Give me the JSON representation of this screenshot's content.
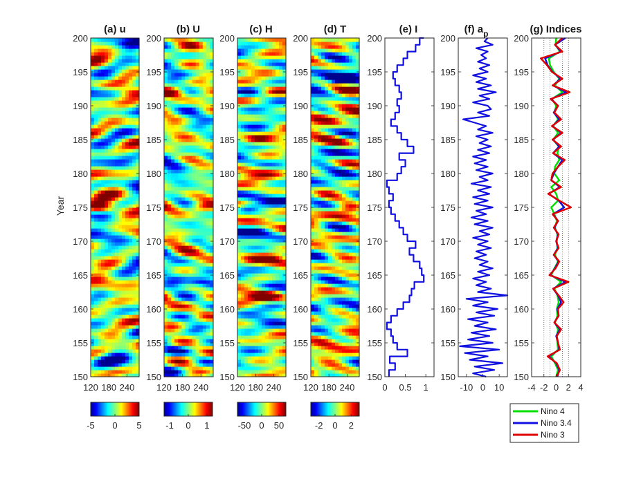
{
  "chart_data": [
    {
      "type": "heatmap",
      "panel": "a",
      "title": "(a) u",
      "ylabel": "Year",
      "xlabel": "",
      "xlim": [
        120,
        280
      ],
      "ylim": [
        150,
        200
      ],
      "xticks": [
        "120",
        "180",
        "240"
      ],
      "yticks": [
        "150",
        "155",
        "160",
        "165",
        "170",
        "175",
        "180",
        "185",
        "190",
        "195",
        "200"
      ],
      "colorbar": {
        "min": -5,
        "max": 5,
        "ticks": [
          "-5",
          "0",
          "5"
        ]
      },
      "features": [
        {
          "year": 175,
          "lon": 150,
          "value": 4.8
        },
        {
          "year": 192,
          "lon": 250,
          "value": 3.5
        },
        {
          "year": 194,
          "lon": 180,
          "value": -3.0
        },
        {
          "year": 163,
          "lon": 190,
          "value": 3.0
        },
        {
          "year": 153,
          "lon": 215,
          "value": -2.5
        }
      ]
    },
    {
      "type": "heatmap",
      "panel": "b",
      "title": "(b) U",
      "xlim": [
        120,
        280
      ],
      "ylim": [
        150,
        200
      ],
      "xticks": [
        "120",
        "180",
        "240"
      ],
      "yticks": [
        "150",
        "155",
        "160",
        "165",
        "170",
        "175",
        "180",
        "185",
        "190",
        "195",
        "200"
      ],
      "colorbar": {
        "min": -1.3,
        "max": 1.3,
        "ticks": [
          "-1",
          "0",
          "1"
        ]
      },
      "features": [
        {
          "year": 192,
          "lon": 150,
          "value": 1.3
        },
        {
          "year": 175,
          "lon": 240,
          "value": 1.2
        },
        {
          "year": 164,
          "lon": 240,
          "value": -1.2
        },
        {
          "year": 183,
          "lon": 180,
          "value": -1.0
        },
        {
          "year": 154,
          "lon": 150,
          "value": -1.0
        }
      ]
    },
    {
      "type": "heatmap",
      "panel": "c",
      "title": "(c) H",
      "xlim": [
        120,
        280
      ],
      "ylim": [
        150,
        200
      ],
      "xticks": [
        "120",
        "180",
        "240"
      ],
      "yticks": [
        "150",
        "155",
        "160",
        "165",
        "170",
        "175",
        "180",
        "185",
        "190",
        "195",
        "200"
      ],
      "colorbar": {
        "min": -70,
        "max": 70,
        "ticks": [
          "-50",
          "0",
          "50"
        ]
      },
      "features": [
        {
          "year": 175,
          "lon": 150,
          "value": -60
        },
        {
          "year": 192,
          "lon": 150,
          "value": -55
        },
        {
          "year": 192,
          "lon": 250,
          "value": 50
        },
        {
          "year": 162,
          "lon": 210,
          "value": 55
        },
        {
          "year": 185,
          "lon": 190,
          "value": 40
        }
      ]
    },
    {
      "type": "heatmap",
      "panel": "d",
      "title": "(d) T",
      "xlim": [
        120,
        280
      ],
      "ylim": [
        150,
        200
      ],
      "xticks": [
        "120",
        "180",
        "240"
      ],
      "yticks": [
        "150",
        "155",
        "160",
        "165",
        "170",
        "175",
        "180",
        "185",
        "190",
        "195",
        "200"
      ],
      "colorbar": {
        "min": -3,
        "max": 3,
        "ticks": [
          "-2",
          "0",
          "2"
        ]
      },
      "features": [
        {
          "year": 175,
          "lon": 250,
          "value": 2.8
        },
        {
          "year": 192,
          "lon": 250,
          "value": 2.5
        },
        {
          "year": 194,
          "lon": 220,
          "value": -2.3
        },
        {
          "year": 163,
          "lon": 250,
          "value": 2.0
        },
        {
          "year": 186,
          "lon": 250,
          "value": -1.8
        }
      ]
    },
    {
      "type": "line",
      "panel": "e",
      "title": "(e) I",
      "xlim": [
        0,
        1.2
      ],
      "ylim": [
        150,
        200
      ],
      "xticks": [
        "0",
        "0.5",
        "1"
      ],
      "yticks": [
        "150",
        "155",
        "160",
        "165",
        "170",
        "175",
        "180",
        "185",
        "190",
        "195",
        "200"
      ],
      "series": [
        {
          "name": "I",
          "color": "#1010e0",
          "year": [
            150,
            151,
            152,
            153,
            154,
            155,
            156,
            157,
            158,
            159,
            160,
            161,
            162,
            163,
            164,
            165,
            166,
            167,
            168,
            169,
            170,
            171,
            172,
            173,
            174,
            175,
            176,
            177,
            178,
            179,
            180,
            181,
            182,
            183,
            184,
            185,
            186,
            187,
            188,
            189,
            190,
            191,
            192,
            193,
            194,
            195,
            196,
            197,
            198,
            199,
            200
          ],
          "value": [
            0.1,
            0.25,
            0.12,
            0.55,
            0.3,
            0.2,
            0.15,
            0.05,
            0.15,
            0.3,
            0.45,
            0.6,
            0.65,
            0.72,
            0.95,
            0.9,
            0.85,
            0.7,
            0.6,
            0.75,
            0.55,
            0.45,
            0.35,
            0.25,
            0.15,
            0.1,
            0.2,
            0.1,
            0.05,
            0.3,
            0.4,
            0.5,
            0.35,
            0.7,
            0.55,
            0.4,
            0.3,
            0.15,
            0.25,
            0.35,
            0.3,
            0.4,
            0.35,
            0.25,
            0.2,
            0.3,
            0.45,
            0.55,
            0.75,
            0.85,
            0.95
          ]
        }
      ]
    },
    {
      "type": "line",
      "panel": "f",
      "title": "(f) a",
      "title_subscript": "p",
      "xlim": [
        -15,
        15
      ],
      "ylim": [
        150,
        200
      ],
      "xticks": [
        "-10",
        "0",
        "10"
      ],
      "yticks": [
        "150",
        "155",
        "160",
        "165",
        "170",
        "175",
        "180",
        "185",
        "190",
        "195",
        "200"
      ],
      "series": [
        {
          "name": "a_p",
          "color": "#1010e0",
          "year": [
            150,
            150.5,
            151,
            151.5,
            152,
            152.5,
            153,
            153.5,
            154,
            154.5,
            155,
            155.5,
            156,
            156.5,
            157,
            157.5,
            158,
            158.5,
            159,
            159.5,
            160,
            160.5,
            161,
            161.5,
            162,
            162.5,
            163,
            163.5,
            164,
            164.5,
            165,
            165.5,
            166,
            166.5,
            167,
            167.5,
            168,
            168.5,
            169,
            169.5,
            170,
            170.5,
            171,
            171.5,
            172,
            172.5,
            173,
            173.5,
            174,
            174.5,
            175,
            175.5,
            176,
            176.5,
            177,
            177.5,
            178,
            178.5,
            179,
            179.5,
            180,
            180.5,
            181,
            181.5,
            182,
            182.5,
            183,
            183.5,
            184,
            184.5,
            185,
            185.5,
            186,
            186.5,
            187,
            187.5,
            188,
            188.5,
            189,
            189.5,
            190,
            190.5,
            191,
            191.5,
            192,
            192.5,
            193,
            193.5,
            194,
            194.5,
            195,
            195.5,
            196,
            196.5,
            197,
            197.5,
            198,
            198.5,
            199,
            199.5,
            200
          ],
          "value": [
            2,
            -6,
            7,
            -5,
            12,
            -8,
            3,
            -11,
            10,
            -14,
            6,
            -9,
            4,
            -7,
            8,
            -5,
            3,
            -9,
            7,
            -4,
            9,
            -6,
            3,
            -10,
            15,
            -3,
            5,
            -4,
            2,
            -6,
            4,
            -3,
            6,
            -2,
            3,
            -5,
            2,
            -4,
            5,
            -3,
            3,
            -6,
            4,
            -2,
            6,
            -5,
            3,
            -7,
            2,
            -4,
            6,
            -5,
            3,
            -6,
            4,
            -3,
            5,
            -7,
            3,
            -2,
            6,
            -4,
            3,
            -5,
            2,
            -6,
            4,
            -3,
            5,
            -2,
            3,
            -4,
            6,
            -3,
            2,
            -5,
            -12,
            4,
            -3,
            5,
            3,
            -6,
            4,
            -2,
            8,
            -3,
            5,
            -4,
            2,
            -6,
            3,
            -2,
            4,
            -3,
            2,
            -1,
            3,
            -4,
            6,
            1,
            3
          ]
        }
      ]
    },
    {
      "type": "line",
      "panel": "g",
      "title": "(g) Indices",
      "xlim": [
        -4,
        4
      ],
      "ylim": [
        150,
        200
      ],
      "xticks": [
        "-4",
        "-2",
        "0",
        "2",
        "4"
      ],
      "yticks": [
        "150",
        "155",
        "160",
        "165",
        "170",
        "175",
        "180",
        "185",
        "190",
        "195",
        "200"
      ],
      "grid_x": [
        -2,
        -1,
        1,
        2
      ],
      "legend": [
        "Nino 4",
        "Nino 3.4",
        "Nino 3"
      ],
      "legend_position": "bottom-right outside",
      "series": [
        {
          "name": "Nino 4",
          "color": "#00e000",
          "year": [
            150,
            151,
            152,
            153,
            154,
            155,
            156,
            157,
            158,
            159,
            160,
            161,
            162,
            163,
            164,
            165,
            166,
            167,
            168,
            169,
            170,
            171,
            172,
            173,
            174,
            175,
            176,
            177,
            178,
            179,
            180,
            181,
            182,
            183,
            184,
            185,
            186,
            187,
            188,
            189,
            190,
            191,
            192,
            193,
            194,
            195,
            196,
            197,
            198,
            199,
            200
          ],
          "value": [
            0.0,
            0.3,
            -0.2,
            -0.8,
            0.3,
            0.2,
            0.1,
            0.3,
            -0.2,
            0.2,
            0.1,
            0.4,
            0.2,
            -0.3,
            0.8,
            -0.8,
            -0.3,
            0.3,
            -0.2,
            0.2,
            0.1,
            0.2,
            -0.2,
            0.1,
            -0.3,
            -0.8,
            0.3,
            0.0,
            -0.8,
            0.5,
            -0.3,
            -0.2,
            0.5,
            0.2,
            0.4,
            -0.5,
            0.3,
            -0.5,
            0.3,
            -0.3,
            0.0,
            -0.7,
            1.0,
            -0.2,
            0.5,
            -0.4,
            -1.0,
            -1.2,
            0.6,
            -0.1,
            0.0
          ]
        },
        {
          "name": "Nino 3.4",
          "color": "#1010e0",
          "year": [
            150,
            151,
            152,
            153,
            154,
            155,
            156,
            157,
            158,
            159,
            160,
            161,
            162,
            163,
            164,
            165,
            166,
            167,
            168,
            169,
            170,
            171,
            172,
            173,
            174,
            175,
            176,
            177,
            178,
            179,
            180,
            181,
            182,
            183,
            184,
            185,
            186,
            187,
            188,
            189,
            190,
            191,
            192,
            193,
            194,
            195,
            196,
            197,
            198,
            199,
            200
          ],
          "value": [
            0.2,
            0.5,
            0.0,
            -1.2,
            0.5,
            0.3,
            0.0,
            0.6,
            -0.3,
            0.4,
            0.2,
            0.8,
            0.3,
            -0.5,
            1.5,
            -1.0,
            -0.2,
            0.4,
            -0.4,
            0.3,
            0.0,
            0.3,
            -0.3,
            0.3,
            -0.5,
            1.3,
            0.4,
            -1.2,
            0.6,
            -0.8,
            -0.4,
            0.3,
            1.0,
            -0.5,
            0.5,
            -0.5,
            0.8,
            -0.6,
            0.5,
            -0.4,
            0.3,
            -0.8,
            1.6,
            -0.5,
            0.7,
            -0.6,
            -1.4,
            -1.8,
            0.8,
            -0.2,
            1.5
          ]
        },
        {
          "name": "Nino 3",
          "color": "#e00000",
          "year": [
            150,
            151,
            152,
            153,
            154,
            155,
            156,
            157,
            158,
            159,
            160,
            161,
            162,
            163,
            164,
            165,
            166,
            167,
            168,
            169,
            170,
            171,
            172,
            173,
            174,
            175,
            176,
            177,
            178,
            179,
            180,
            181,
            182,
            183,
            184,
            185,
            186,
            187,
            188,
            189,
            190,
            191,
            192,
            193,
            194,
            195,
            196,
            197,
            198,
            199,
            200
          ],
          "value": [
            0.1,
            0.6,
            0.1,
            -1.4,
            0.6,
            0.3,
            0.1,
            0.8,
            -0.3,
            0.4,
            0.3,
            1.2,
            0.4,
            -0.5,
            2.0,
            -1.1,
            -0.1,
            0.5,
            -0.4,
            0.4,
            0.0,
            0.4,
            -0.4,
            0.3,
            -0.6,
            2.4,
            0.5,
            -1.3,
            0.8,
            -0.8,
            -0.6,
            0.3,
            1.4,
            -0.5,
            0.8,
            -0.6,
            1.0,
            -0.7,
            0.8,
            -0.3,
            0.3,
            -0.9,
            2.2,
            -0.6,
            1.0,
            -0.7,
            -1.5,
            -2.5,
            1.0,
            -0.2,
            1.0
          ]
        }
      ]
    }
  ]
}
